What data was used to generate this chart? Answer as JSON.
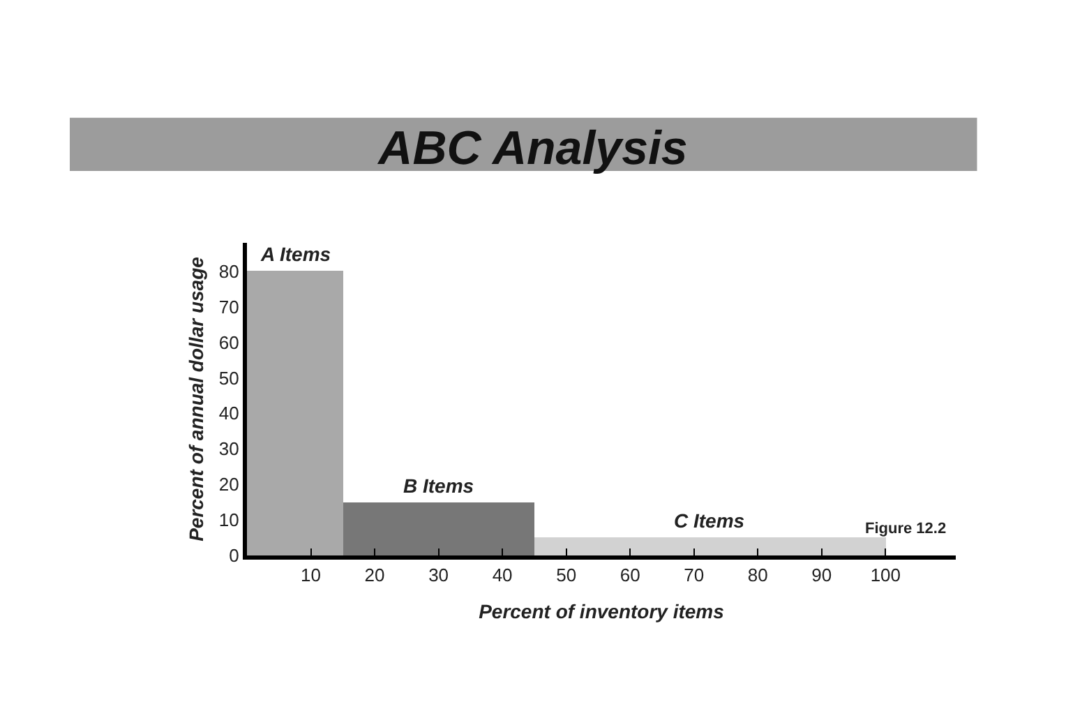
{
  "chart_data": {
    "type": "histogram",
    "title": "ABC Analysis",
    "xlabel": "Percent of inventory items",
    "ylabel": "Percent of annual dollar usage",
    "bins": [
      0,
      15,
      45,
      100
    ],
    "values": [
      80,
      15,
      5
    ],
    "colors": [
      "#a9a9a9",
      "#777777",
      "#d2d2d2"
    ],
    "xlim": [
      0,
      111
    ],
    "xticks": [
      10,
      20,
      30,
      40,
      50,
      60,
      70,
      80,
      90,
      100
    ],
    "ylim": [
      0,
      88
    ],
    "yticks": [
      0,
      10,
      20,
      30,
      40,
      50,
      60,
      70,
      80
    ],
    "annotations": [
      "A Items",
      "B Items",
      "C Items",
      "Figure 12.2"
    ]
  }
}
